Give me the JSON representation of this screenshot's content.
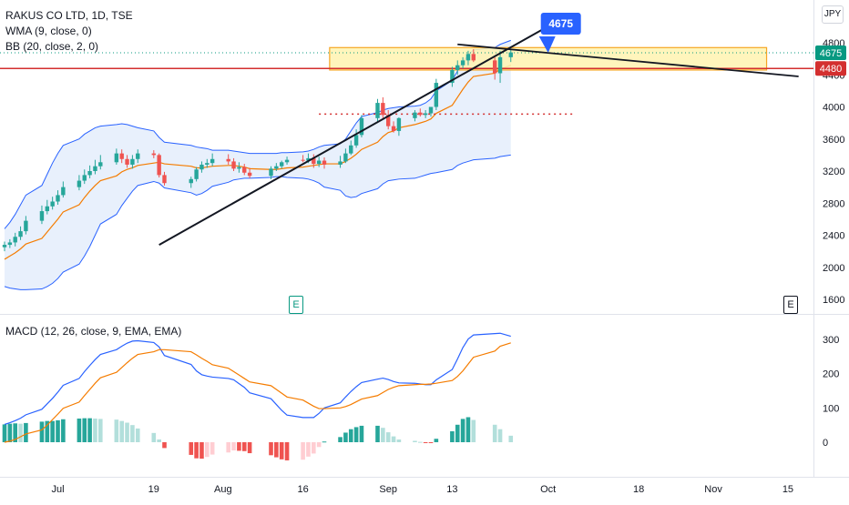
{
  "legend": {
    "main_title": "RAKUS CO LTD, 1D, TSE",
    "wma": "WMA (9, close, 0)",
    "bb": "BB (20, close, 2, 0)",
    "macd": "MACD (12, 26, close, 9, EMA, EMA)"
  },
  "currency": "JPY",
  "earnings_badges": [
    "E",
    "E"
  ],
  "callout_label": "4675",
  "colors": {
    "up": "#26a69a",
    "up_dark": "#089981",
    "down": "#ef5350",
    "bb_band": "#2962ff",
    "bb_fill": "#e8f0fc",
    "wma": "#f57c00",
    "macd_line": "#2962ff",
    "signal_line": "#f57c00",
    "hist_up_strong": "#26a69a",
    "hist_up_weak": "#b2dfdb",
    "hist_down_strong": "#ef5350",
    "hist_down_weak": "#ffcdd2",
    "zone_fill": "#fff3b0",
    "zone_border": "#f5a623",
    "level_line": "#d32f2f",
    "trendline": "#131722",
    "callout": "#2962ff",
    "grid": "#f0f3fa",
    "axis_text": "#131722"
  },
  "chart_data": [
    {
      "type": "candlestick",
      "title": "RAKUS CO LTD, 1D, TSE",
      "y_axis": {
        "ticks": [
          1600,
          2000,
          2400,
          2800,
          3200,
          3600,
          4000,
          4400,
          4800
        ],
        "range": [
          1380,
          5300
        ],
        "unit": "JPY"
      },
      "x_axis": {
        "tick_labels": [
          "Jul",
          "19",
          "Aug",
          "16",
          "Sep",
          "13",
          "Oct",
          "18",
          "Nov",
          "15"
        ],
        "range": [
          "2021-06-21",
          "2021-11-17"
        ]
      },
      "series": {
        "dates": [
          "2021-06-21",
          "2021-06-22",
          "2021-06-23",
          "2021-06-24",
          "2021-06-25",
          "2021-06-28",
          "2021-06-29",
          "2021-06-30",
          "2021-07-01",
          "2021-07-02",
          "2021-07-05",
          "2021-07-06",
          "2021-07-07",
          "2021-07-08",
          "2021-07-09",
          "2021-07-12",
          "2021-07-13",
          "2021-07-14",
          "2021-07-15",
          "2021-07-16",
          "2021-07-19",
          "2021-07-20",
          "2021-07-21",
          "2021-07-26",
          "2021-07-27",
          "2021-07-28",
          "2021-07-29",
          "2021-07-30",
          "2021-08-02",
          "2021-08-03",
          "2021-08-04",
          "2021-08-05",
          "2021-08-06",
          "2021-08-10",
          "2021-08-11",
          "2021-08-12",
          "2021-08-13",
          "2021-08-16",
          "2021-08-17",
          "2021-08-18",
          "2021-08-19",
          "2021-08-20",
          "2021-08-23",
          "2021-08-24",
          "2021-08-25",
          "2021-08-26",
          "2021-08-27",
          "2021-08-30",
          "2021-08-31",
          "2021-09-01",
          "2021-09-02",
          "2021-09-03",
          "2021-09-06",
          "2021-09-07",
          "2021-09-08",
          "2021-09-09",
          "2021-09-10",
          "2021-09-13",
          "2021-09-14",
          "2021-09-15",
          "2021-09-16",
          "2021-09-17",
          "2021-09-21",
          "2021-09-22",
          "2021-09-24"
        ],
        "open": [
          2250,
          2280,
          2310,
          2380,
          2450,
          2580,
          2700,
          2760,
          2820,
          2900,
          3000,
          3080,
          3150,
          3200,
          3260,
          3310,
          3420,
          3350,
          3280,
          3350,
          3420,
          3400,
          3150,
          3050,
          3100,
          3220,
          3280,
          3300,
          3350,
          3320,
          3230,
          3250,
          3180,
          3140,
          3230,
          3260,
          3310,
          3340,
          3330,
          3360,
          3290,
          3330,
          3280,
          3320,
          3420,
          3520,
          3650,
          3860,
          4050,
          3900,
          3760,
          3700,
          3860,
          3930,
          3900,
          3920,
          4000,
          4300,
          4460,
          4520,
          4580,
          4660,
          4580,
          4420,
          4620
        ],
        "high": [
          2320,
          2350,
          2430,
          2510,
          2640,
          2770,
          2840,
          2880,
          2960,
          3070,
          3150,
          3220,
          3270,
          3340,
          3400,
          3480,
          3470,
          3400,
          3400,
          3470,
          3460,
          3420,
          3190,
          3130,
          3250,
          3320,
          3350,
          3420,
          3410,
          3360,
          3310,
          3290,
          3240,
          3260,
          3300,
          3330,
          3380,
          3400,
          3420,
          3410,
          3380,
          3370,
          3390,
          3480,
          3580,
          3720,
          3900,
          4100,
          4120,
          3960,
          3820,
          3870,
          3960,
          3980,
          3960,
          4000,
          4350,
          4500,
          4580,
          4620,
          4700,
          4720,
          4620,
          4700,
          4720
        ],
        "low": [
          2200,
          2240,
          2260,
          2340,
          2410,
          2540,
          2660,
          2720,
          2780,
          2870,
          2960,
          3040,
          3110,
          3160,
          3220,
          3280,
          3300,
          3240,
          3230,
          3300,
          3360,
          3120,
          3020,
          2990,
          3070,
          3180,
          3240,
          3260,
          3280,
          3200,
          3180,
          3150,
          3110,
          3100,
          3200,
          3230,
          3280,
          3310,
          3300,
          3240,
          3250,
          3230,
          3240,
          3300,
          3400,
          3490,
          3620,
          3820,
          3860,
          3720,
          3680,
          3640,
          3820,
          3880,
          3860,
          3880,
          3960,
          4250,
          4400,
          4480,
          4520,
          4560,
          4340,
          4300,
          4560
        ],
        "close": [
          2280,
          2310,
          2380,
          2450,
          2580,
          2700,
          2760,
          2820,
          2900,
          3000,
          3080,
          3150,
          3200,
          3260,
          3310,
          3420,
          3350,
          3280,
          3350,
          3420,
          3400,
          3150,
          3050,
          3100,
          3220,
          3280,
          3300,
          3350,
          3320,
          3230,
          3250,
          3180,
          3140,
          3230,
          3260,
          3310,
          3340,
          3330,
          3360,
          3290,
          3330,
          3280,
          3320,
          3420,
          3520,
          3650,
          3860,
          4050,
          3900,
          3760,
          3700,
          3860,
          3930,
          3900,
          3920,
          4000,
          4300,
          4460,
          4520,
          4580,
          4660,
          4580,
          4420,
          4620,
          4680
        ]
      },
      "wma": [
        2100,
        2140,
        2180,
        2230,
        2290,
        2360,
        2440,
        2520,
        2600,
        2690,
        2780,
        2870,
        2950,
        3020,
        3080,
        3140,
        3190,
        3220,
        3240,
        3270,
        3300,
        3310,
        3290,
        3260,
        3240,
        3240,
        3250,
        3260,
        3270,
        3270,
        3260,
        3250,
        3230,
        3220,
        3220,
        3230,
        3240,
        3250,
        3260,
        3270,
        3280,
        3290,
        3290,
        3320,
        3360,
        3410,
        3470,
        3560,
        3630,
        3680,
        3700,
        3740,
        3780,
        3800,
        3820,
        3850,
        3920,
        4020,
        4120,
        4220,
        4310,
        4380,
        4420,
        4470,
        4520
      ],
      "bb_upper": [
        2480,
        2560,
        2660,
        2780,
        2900,
        3020,
        3160,
        3300,
        3420,
        3520,
        3600,
        3660,
        3700,
        3740,
        3760,
        3780,
        3790,
        3780,
        3760,
        3740,
        3700,
        3620,
        3560,
        3520,
        3500,
        3490,
        3480,
        3460,
        3460,
        3450,
        3440,
        3430,
        3420,
        3420,
        3420,
        3430,
        3430,
        3440,
        3450,
        3470,
        3500,
        3520,
        3540,
        3600,
        3700,
        3800,
        3880,
        3930,
        3960,
        3980,
        3990,
        4000,
        4010,
        4020,
        4050,
        4100,
        4200,
        4330,
        4450,
        4560,
        4650,
        4710,
        4740,
        4780,
        4830
      ],
      "bb_lower": [
        1760,
        1740,
        1730,
        1720,
        1720,
        1730,
        1760,
        1800,
        1860,
        1940,
        2040,
        2140,
        2260,
        2400,
        2540,
        2660,
        2770,
        2860,
        2950,
        3020,
        3070,
        3050,
        2990,
        2930,
        2900,
        2920,
        2960,
        3010,
        3060,
        3090,
        3100,
        3110,
        3110,
        3120,
        3130,
        3130,
        3120,
        3110,
        3100,
        3080,
        3050,
        3000,
        2960,
        2890,
        2870,
        2880,
        2920,
        2980,
        3040,
        3080,
        3090,
        3100,
        3110,
        3130,
        3150,
        3170,
        3180,
        3220,
        3270,
        3300,
        3320,
        3340,
        3360,
        3380,
        3400
      ],
      "annotations": {
        "resistance_zone": [
          4460,
          4740
        ],
        "level": 4480,
        "dotted_level": 3910,
        "last_price": 4675,
        "axis_price_labels": [
          "4675",
          "4480"
        ],
        "callout": "4675"
      }
    },
    {
      "type": "macd",
      "title": "MACD (12, 26, close, 9, EMA, EMA)",
      "y_axis": {
        "ticks": [
          0,
          100,
          200,
          300
        ],
        "range": [
          -85,
          345
        ]
      },
      "macd": [
        52,
        57,
        63,
        70,
        80,
        96,
        112,
        128,
        146,
        166,
        186,
        206,
        224,
        241,
        256,
        270,
        280,
        289,
        295,
        296,
        291,
        278,
        253,
        227,
        208,
        197,
        193,
        190,
        186,
        182,
        171,
        160,
        144,
        127,
        110,
        93,
        79,
        72,
        72,
        72,
        84,
        100,
        115,
        132,
        148,
        162,
        174,
        184,
        187,
        183,
        177,
        173,
        172,
        170,
        168,
        168,
        182,
        212,
        243,
        276,
        301,
        313,
        317,
        318,
        309
      ],
      "signal": [
        0,
        3,
        8,
        16,
        24,
        36,
        50,
        66,
        82,
        99,
        117,
        136,
        154,
        172,
        188,
        204,
        218,
        232,
        245,
        256,
        264,
        270,
        270,
        264,
        255,
        245,
        236,
        226,
        216,
        206,
        196,
        186,
        176,
        165,
        154,
        143,
        132,
        123,
        114,
        105,
        98,
        98,
        100,
        104,
        110,
        118,
        126,
        136,
        145,
        154,
        160,
        165,
        168,
        169,
        169,
        170,
        172,
        180,
        192,
        208,
        228,
        248,
        266,
        280,
        290
      ],
      "histogram": [
        52,
        54,
        55,
        54,
        56,
        60,
        62,
        62,
        64,
        67,
        69,
        70,
        70,
        69,
        68,
        66,
        62,
        57,
        50,
        40,
        27,
        8,
        -17,
        -37,
        -47,
        -48,
        -43,
        -36,
        -30,
        -24,
        -25,
        -26,
        -32,
        -38,
        -44,
        -50,
        -53,
        -51,
        -42,
        -33,
        -14,
        2,
        15,
        28,
        38,
        44,
        48,
        48,
        42,
        29,
        17,
        8,
        4,
        1,
        -1,
        -2,
        10,
        32,
        51,
        68,
        73,
        65,
        51,
        38,
        19
      ]
    }
  ]
}
